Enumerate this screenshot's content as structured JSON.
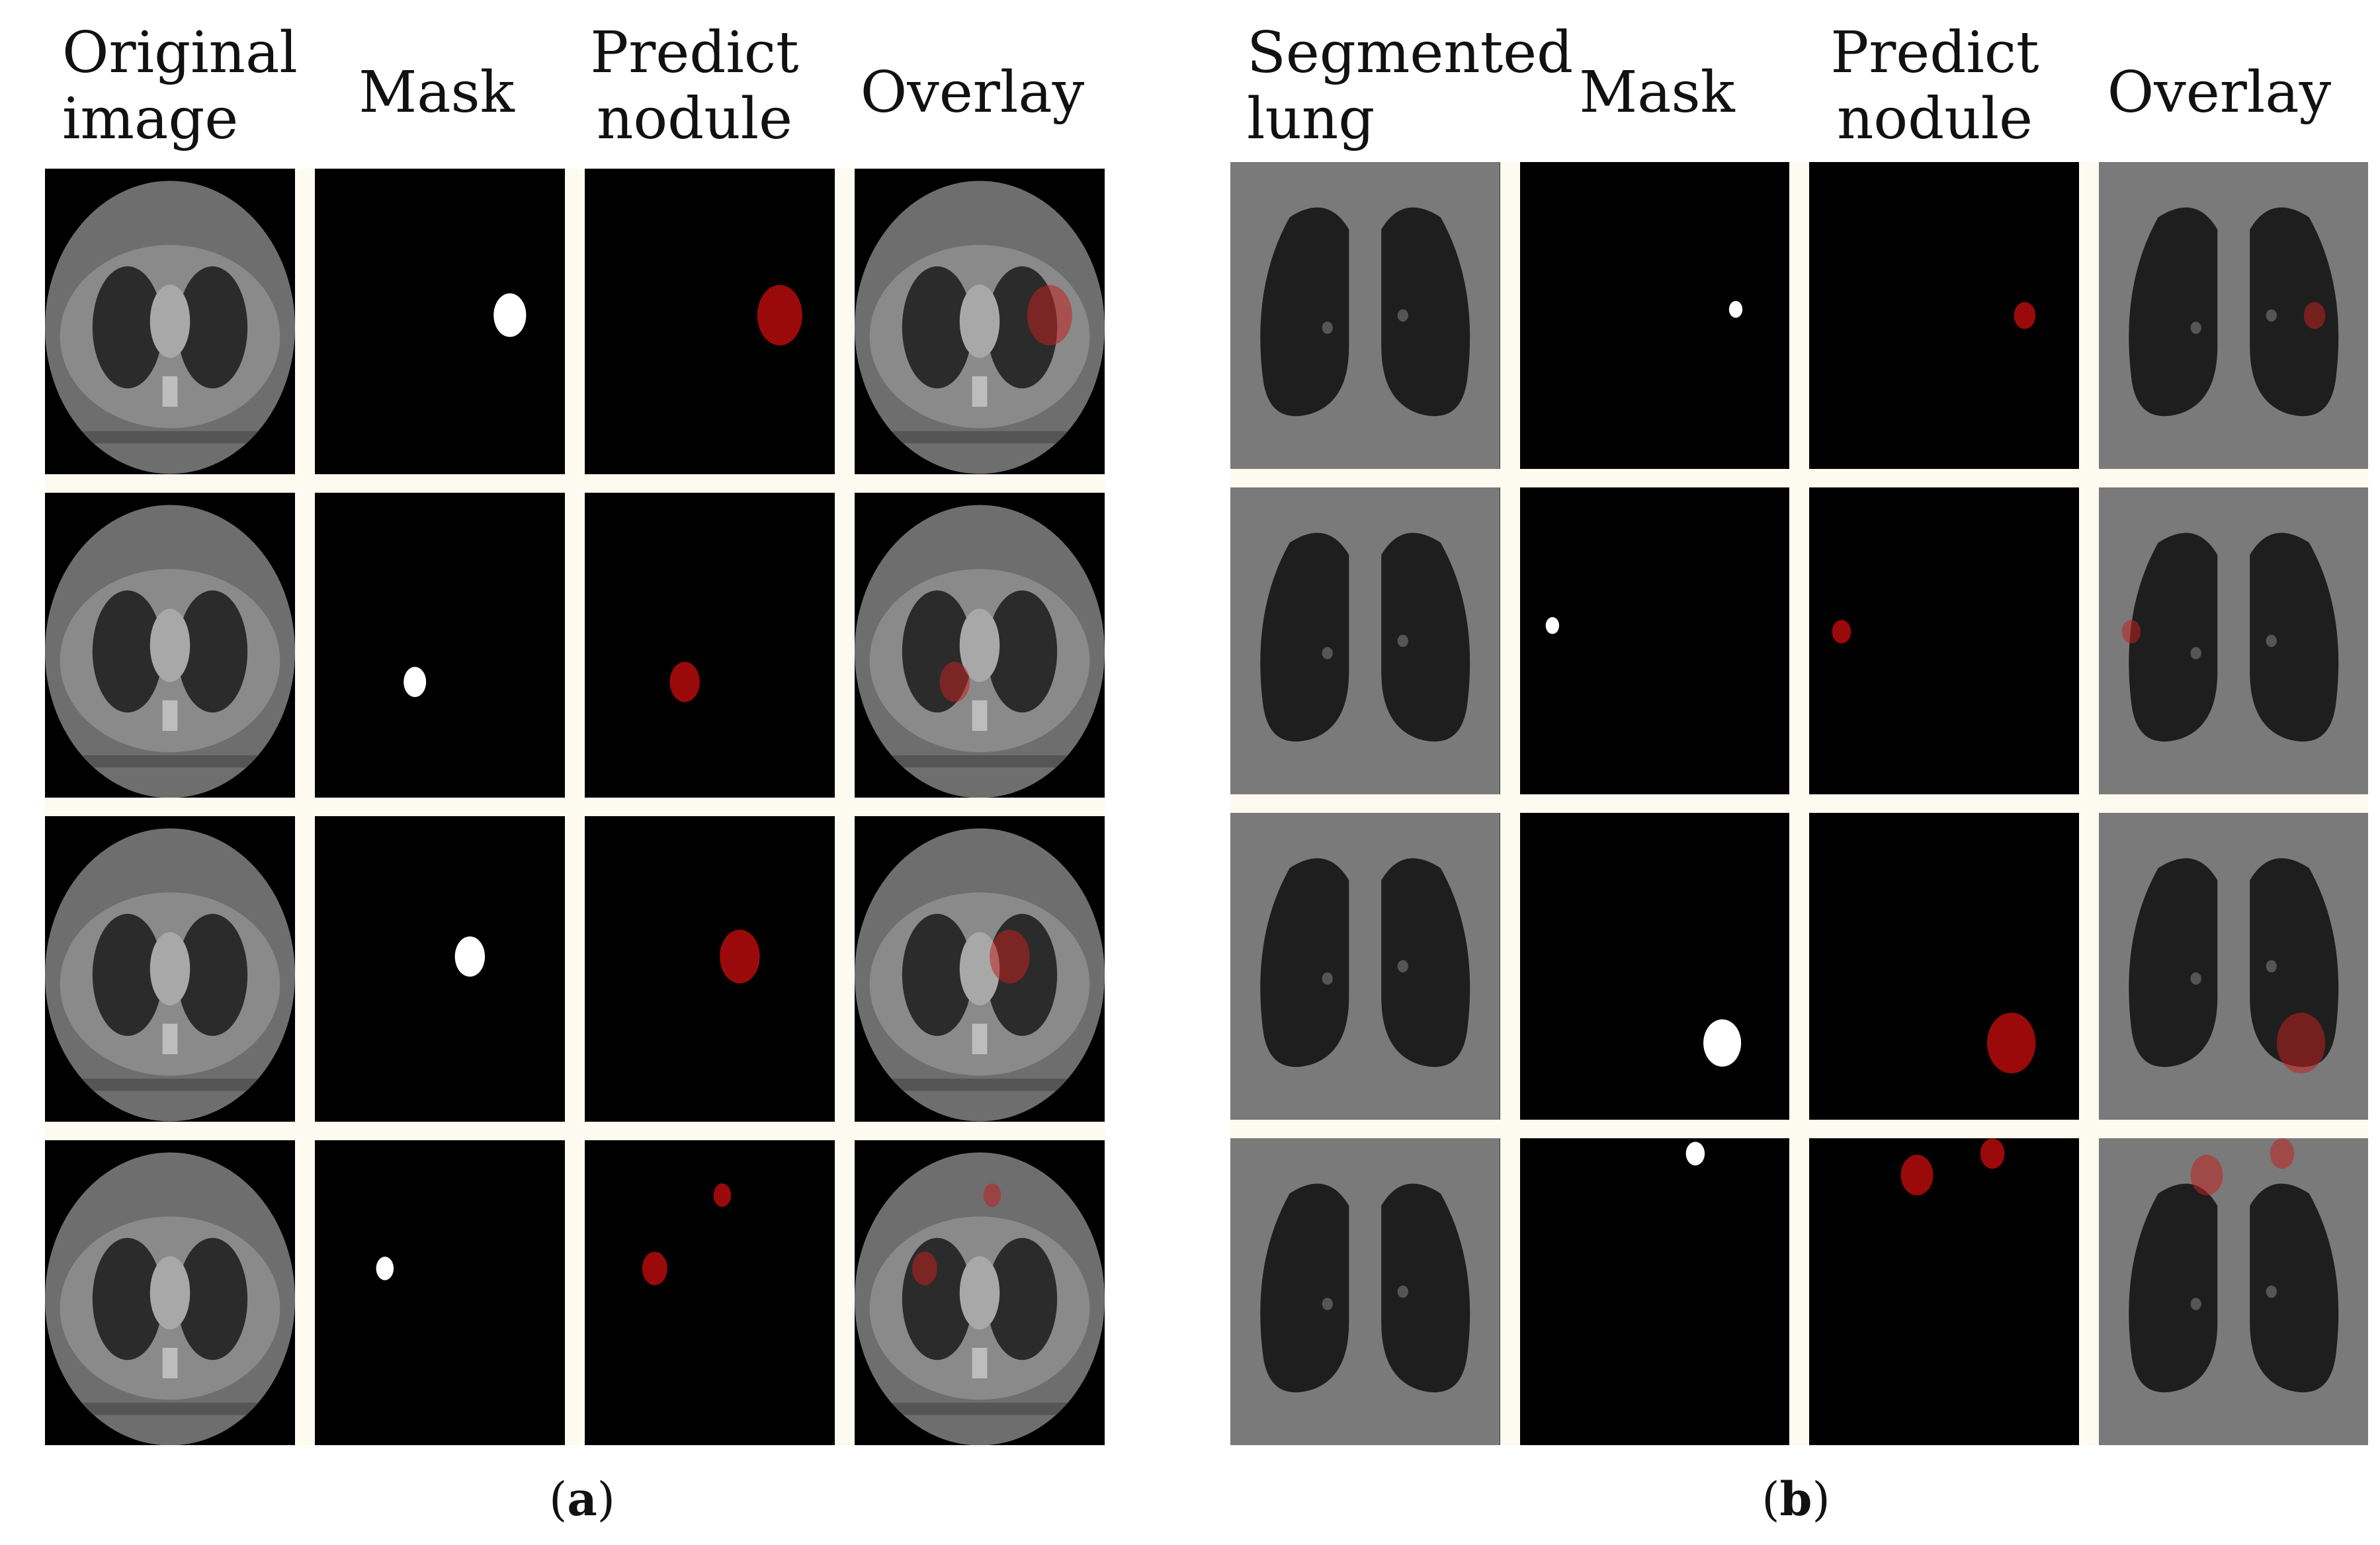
{
  "panel_a": {
    "headers": [
      [
        "Original",
        "image"
      ],
      [
        "Mask"
      ],
      [
        "Predict",
        "nodule"
      ],
      [
        "Overlay"
      ]
    ],
    "caption_open": "(",
    "caption_letter": "a",
    "caption_close": ")",
    "nodules": [
      {
        "mask": [
          [
            0.78,
            0.48,
            0.065
          ]
        ],
        "pred": [
          [
            0.78,
            0.48,
            0.09
          ]
        ]
      },
      {
        "mask": [
          [
            0.4,
            0.62,
            0.045
          ]
        ],
        "pred": [
          [
            0.4,
            0.62,
            0.06
          ]
        ]
      },
      {
        "mask": [
          [
            0.62,
            0.46,
            0.06
          ]
        ],
        "pred": [
          [
            0.62,
            0.46,
            0.08
          ]
        ]
      },
      {
        "mask": [
          [
            0.28,
            0.42,
            0.035
          ]
        ],
        "pred": [
          [
            0.28,
            0.42,
            0.05
          ],
          [
            0.55,
            0.18,
            0.035
          ]
        ]
      }
    ]
  },
  "panel_b": {
    "headers": [
      [
        "Segmented",
        "lung"
      ],
      [
        "Mask"
      ],
      [
        "Predict",
        "nodule"
      ],
      [
        "Overlay"
      ]
    ],
    "caption_open": "(",
    "caption_letter": "b",
    "caption_close": ")",
    "nodules": [
      {
        "mask": [
          [
            0.8,
            0.48,
            0.025
          ]
        ],
        "pred": [
          [
            0.8,
            0.5,
            0.04
          ]
        ]
      },
      {
        "mask": [
          [
            0.12,
            0.45,
            0.025
          ]
        ],
        "pred": [
          [
            0.12,
            0.47,
            0.035
          ]
        ]
      },
      {
        "mask": [
          [
            0.75,
            0.75,
            0.07
          ]
        ],
        "pred": [
          [
            0.75,
            0.75,
            0.09
          ]
        ]
      },
      {
        "mask": [
          [
            0.65,
            0.05,
            0.035
          ]
        ],
        "pred": [
          [
            0.4,
            0.12,
            0.06
          ],
          [
            0.68,
            0.05,
            0.045
          ]
        ]
      }
    ]
  },
  "colors": {
    "nodule_red": "#9a0a0a",
    "mask_white": "#ffffff",
    "ct_gray": "#7a7a7a",
    "lung_dark": "#1e1e1e"
  }
}
